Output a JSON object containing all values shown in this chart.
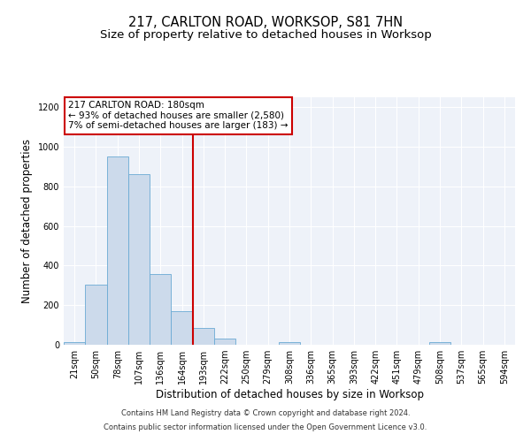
{
  "title": "217, CARLTON ROAD, WORKSOP, S81 7HN",
  "subtitle": "Size of property relative to detached houses in Worksop",
  "xlabel": "Distribution of detached houses by size in Worksop",
  "ylabel": "Number of detached properties",
  "bar_color": "#ccdaeb",
  "bar_edge_color": "#6aaad4",
  "bin_labels": [
    "21sqm",
    "50sqm",
    "78sqm",
    "107sqm",
    "136sqm",
    "164sqm",
    "193sqm",
    "222sqm",
    "250sqm",
    "279sqm",
    "308sqm",
    "336sqm",
    "365sqm",
    "393sqm",
    "422sqm",
    "451sqm",
    "479sqm",
    "508sqm",
    "537sqm",
    "565sqm",
    "594sqm"
  ],
  "bar_heights": [
    12,
    305,
    950,
    863,
    358,
    170,
    85,
    30,
    0,
    0,
    12,
    0,
    0,
    0,
    0,
    0,
    0,
    12,
    0,
    0,
    0
  ],
  "vline_bin_index": 5.5,
  "annotation_line1": "217 CARLTON ROAD: 180sqm",
  "annotation_line2": "← 93% of detached houses are smaller (2,580)",
  "annotation_line3": "7% of semi-detached houses are larger (183) →",
  "ylim": [
    0,
    1250
  ],
  "yticks": [
    0,
    200,
    400,
    600,
    800,
    1000,
    1200
  ],
  "footnote_line1": "Contains HM Land Registry data © Crown copyright and database right 2024.",
  "footnote_line2": "Contains public sector information licensed under the Open Government Licence v3.0.",
  "background_color": "#eef2f9",
  "grid_color": "#ffffff",
  "vline_color": "#cc0000",
  "annotation_box_color": "#cc0000",
  "title_fontsize": 10.5,
  "subtitle_fontsize": 9.5,
  "axis_label_fontsize": 8.5,
  "tick_fontsize": 7,
  "annotation_fontsize": 7.5,
  "footnote_fontsize": 6.0
}
